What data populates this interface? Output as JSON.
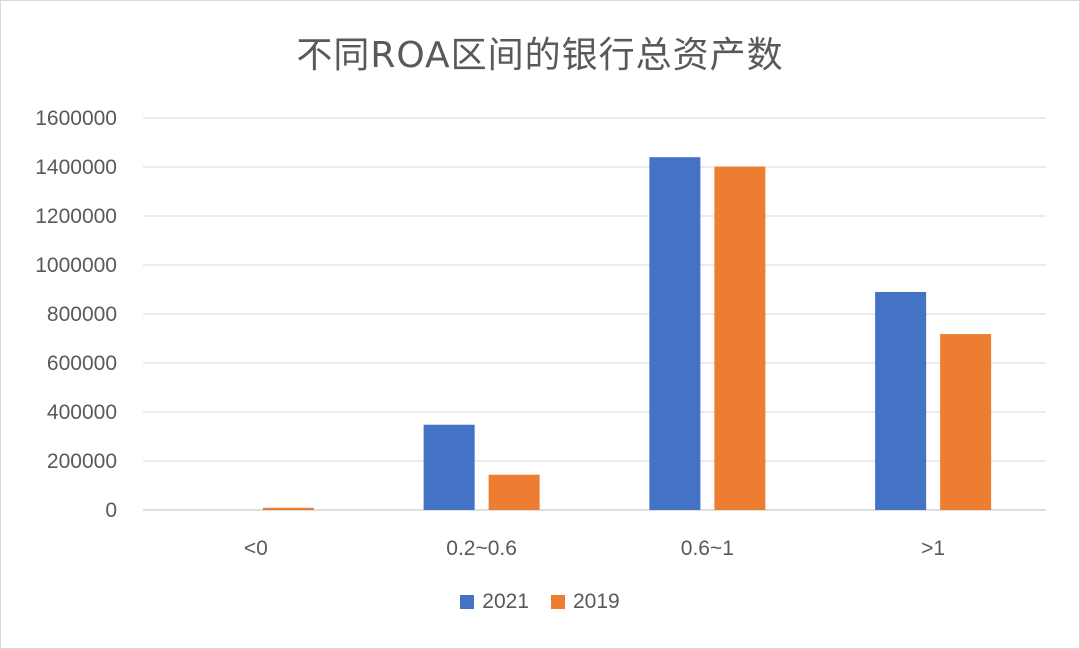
{
  "chart_data": {
    "type": "bar",
    "title": "不同ROA区间的银行总资产数",
    "categories": [
      "<0",
      "0.2~0.6",
      "0.6~1",
      ">1"
    ],
    "series": [
      {
        "name": "2021",
        "color": "#4472C4",
        "values": [
          0,
          348000,
          1440000,
          890000
        ]
      },
      {
        "name": "2019",
        "color": "#ED7D31",
        "values": [
          9000,
          144000,
          1402000,
          718000
        ]
      }
    ],
    "ylim": [
      0,
      1600000
    ],
    "yticks": [
      0,
      200000,
      400000,
      600000,
      800000,
      1000000,
      1200000,
      1400000,
      1600000
    ],
    "ytick_labels": [
      "0",
      "200000",
      "400000",
      "600000",
      "800000",
      "1000000",
      "1200000",
      "1400000",
      "1600000"
    ],
    "grid": true,
    "legend_position": "bottom"
  }
}
